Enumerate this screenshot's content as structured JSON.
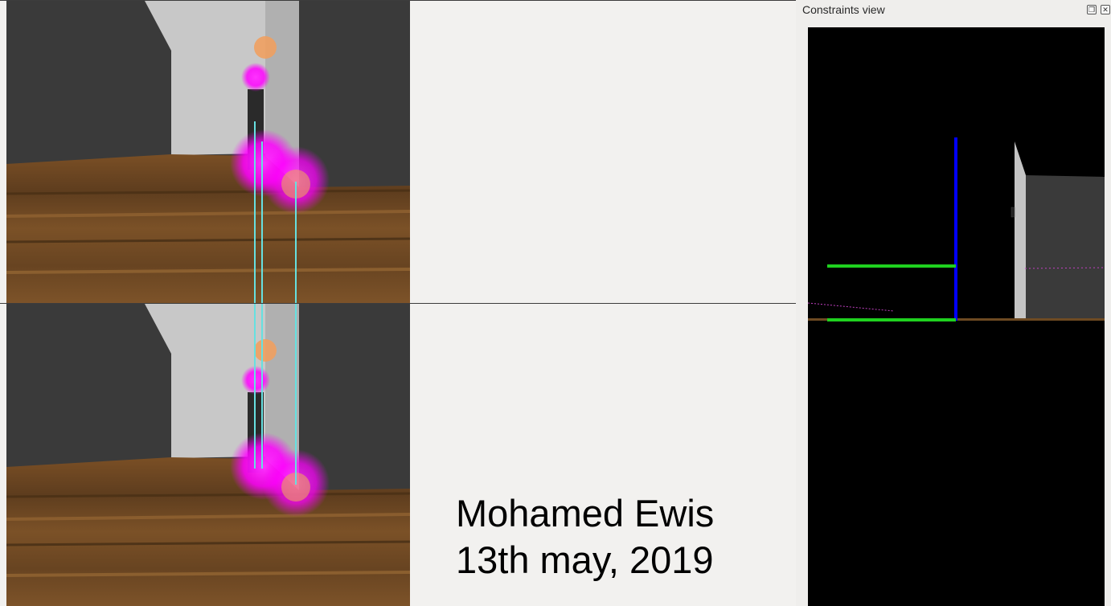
{
  "caption": {
    "name": "Mohamed Ewis",
    "date": "13th may, 2019"
  },
  "panel": {
    "title": "Constraints view",
    "float_button_icon": "float-icon",
    "close_button_icon": "close-icon"
  },
  "colors": {
    "background": "#f2f1ef",
    "floor": "#6e4a22",
    "wall": "#3a3a3a",
    "pillar": "#c4c4c4",
    "marker": "#ff00ff",
    "marker_orange": "#f0a060",
    "constraint_green": "#1fd11f",
    "constraint_blue": "#0000ff",
    "constraint_cyan": "#66e0e0"
  }
}
